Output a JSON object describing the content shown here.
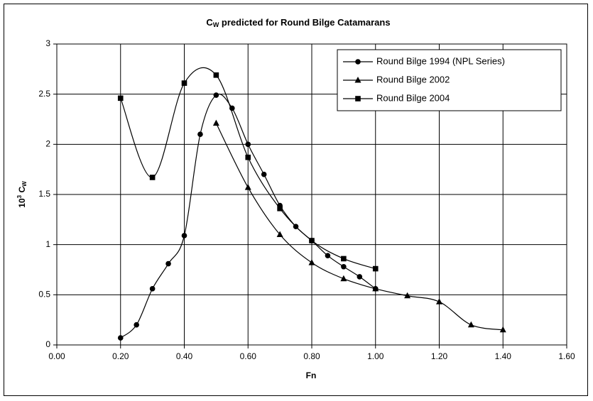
{
  "chart_data": {
    "type": "scatter",
    "title": [
      "C",
      "W",
      " predicted for Round Bilge Catamarans"
    ],
    "x_label": "Fn",
    "y_label": [
      "10",
      "3",
      " C",
      "W"
    ],
    "smooth": true,
    "grid": true,
    "legend": "upper right",
    "xlim": [
      0,
      1.6
    ],
    "xticks": [
      {
        "value": 0,
        "label": "0.00"
      },
      {
        "value": 0.2,
        "label": "0.20"
      },
      {
        "value": 0.4,
        "label": "0.40"
      },
      {
        "value": 0.6,
        "label": "0.60"
      },
      {
        "value": 0.8,
        "label": "0.80"
      },
      {
        "value": 1.0,
        "label": "1.00"
      },
      {
        "value": 1.2,
        "label": "1.20"
      },
      {
        "value": 1.4,
        "label": "1.40"
      },
      {
        "value": 1.6,
        "label": "1.60"
      }
    ],
    "ylim": [
      0,
      3
    ],
    "yticks": [
      0,
      0.5,
      1,
      1.5,
      2,
      2.5,
      3
    ],
    "series": [
      {
        "name": "Round Bilge 1994 (NPL Series)",
        "color": "#000000",
        "marker": "circle",
        "x": [
          0.2,
          0.25,
          0.3,
          0.35,
          0.4,
          0.45,
          0.5,
          0.55,
          0.6,
          0.65,
          0.7,
          0.75,
          0.8,
          0.85,
          0.9,
          0.95,
          1.0
        ],
        "values": [
          0.07,
          0.2,
          0.56,
          0.81,
          1.09,
          2.1,
          2.49,
          2.36,
          2.0,
          1.7,
          1.39,
          1.18,
          1.04,
          0.89,
          0.78,
          0.68,
          0.56
        ]
      },
      {
        "name": "Round Bilge 2002",
        "color": "#000000",
        "marker": "triangle",
        "x": [
          0.5,
          0.6,
          0.7,
          0.8,
          0.9,
          1.0,
          1.1,
          1.2,
          1.3,
          1.4
        ],
        "values": [
          2.21,
          1.57,
          1.1,
          0.82,
          0.66,
          0.56,
          0.49,
          0.43,
          0.2,
          0.15
        ]
      },
      {
        "name": "Round Bilge 2004",
        "color": "#000000",
        "marker": "square",
        "x": [
          0.2,
          0.3,
          0.4,
          0.5,
          0.6,
          0.7,
          0.8,
          0.9,
          1.0
        ],
        "values": [
          2.46,
          1.67,
          2.61,
          2.69,
          1.87,
          1.36,
          1.04,
          0.86,
          0.76
        ]
      }
    ]
  }
}
